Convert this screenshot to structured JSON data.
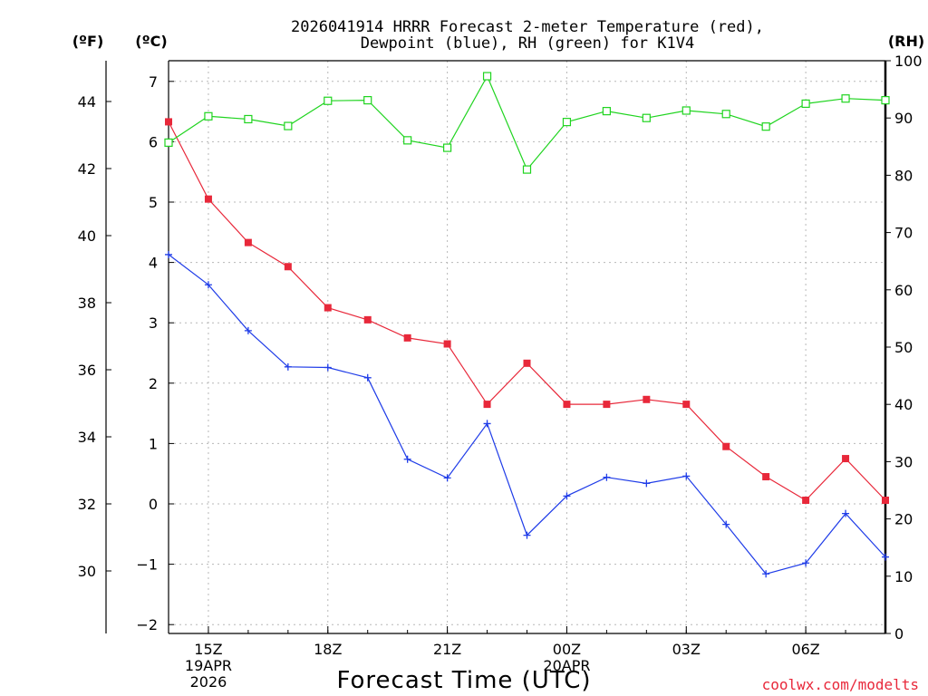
{
  "chart_data": {
    "type": "line",
    "title": [
      "2026041914 HRRR Forecast 2-meter Temperature (red),",
      "Dewpoint (blue), RH (green) for K1V4"
    ],
    "xlabel": "Forecast Time (UTC)",
    "units": {
      "fahrenheit": "(ºF)",
      "celsius": "(ºC)",
      "rh": "(RH)"
    },
    "hours": [
      14,
      15,
      16,
      17,
      18,
      19,
      20,
      21,
      22,
      23,
      24,
      25,
      26,
      27,
      28,
      29,
      30,
      31,
      32
    ],
    "x_ticks": [
      {
        "hour": 15,
        "lines": [
          "15Z",
          "19APR",
          "2026"
        ]
      },
      {
        "hour": 18,
        "lines": [
          "18Z"
        ]
      },
      {
        "hour": 21,
        "lines": [
          "21Z"
        ]
      },
      {
        "hour": 24,
        "lines": [
          "00Z",
          "20APR"
        ]
      },
      {
        "hour": 27,
        "lines": [
          "03Z"
        ]
      },
      {
        "hour": 30,
        "lines": [
          "06Z"
        ]
      }
    ],
    "xlim": [
      14,
      32
    ],
    "celsius_axis": {
      "ylim": [
        -2.2,
        7.3
      ],
      "ticks": [
        -2,
        -1,
        0,
        1,
        2,
        3,
        4,
        5,
        6,
        7
      ],
      "labels": [
        "−2",
        "−1",
        "0",
        "1",
        "2",
        "3",
        "4",
        "5",
        "6",
        "7"
      ]
    },
    "fahrenheit_axis": {
      "ticks": [
        30,
        32,
        34,
        36,
        38,
        40,
        42,
        44
      ],
      "labels": [
        "30",
        "32",
        "34",
        "36",
        "38",
        "40",
        "42",
        "44"
      ]
    },
    "rh_axis": {
      "ylim": [
        0,
        100
      ],
      "ticks": [
        0,
        10,
        20,
        30,
        40,
        50,
        60,
        70,
        80,
        90,
        100
      ],
      "labels": [
        "0",
        "10",
        "20",
        "30",
        "40",
        "50",
        "60",
        "70",
        "80",
        "90",
        "100"
      ]
    },
    "series": [
      {
        "name": "Temperature",
        "axis": "celsius",
        "color": "#e8283a",
        "marker": "filled-square",
        "values": [
          6.33,
          5.05,
          4.33,
          3.93,
          3.25,
          3.05,
          2.75,
          2.65,
          1.65,
          2.33,
          1.65,
          1.65,
          1.73,
          1.65,
          0.95,
          0.45,
          0.06,
          0.75,
          0.06
        ]
      },
      {
        "name": "Dewpoint",
        "axis": "celsius",
        "color": "#1f3ce8",
        "marker": "plus",
        "values": [
          4.13,
          3.63,
          2.87,
          2.27,
          2.26,
          2.09,
          0.74,
          0.43,
          1.33,
          -0.52,
          0.13,
          0.44,
          0.34,
          0.46,
          -0.34,
          -1.16,
          -0.98,
          -0.16,
          -0.88
        ]
      },
      {
        "name": "RH",
        "axis": "rh",
        "color": "#1fd41f",
        "marker": "open-square",
        "values": [
          85.7,
          90.3,
          89.8,
          88.6,
          93.0,
          93.1,
          86.1,
          84.8,
          97.3,
          81.0,
          89.3,
          91.2,
          90.0,
          91.3,
          90.7,
          88.5,
          92.5,
          93.4,
          93.1
        ]
      }
    ],
    "grid": true,
    "credit": "coolwx.com/modelts"
  }
}
